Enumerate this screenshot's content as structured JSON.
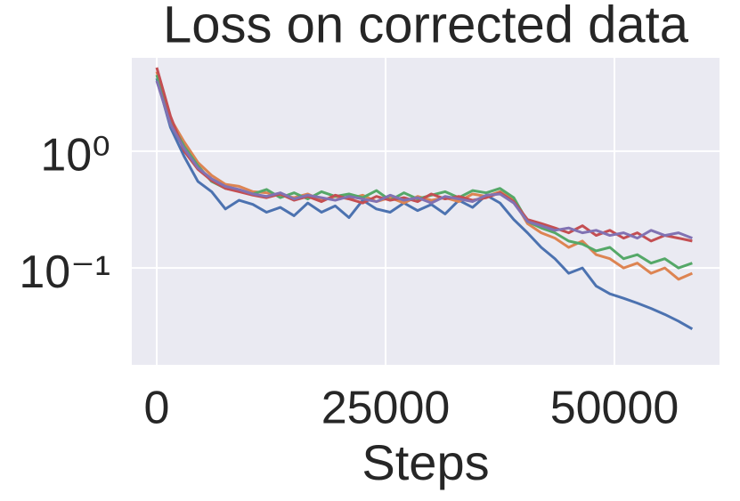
{
  "chart_data": {
    "type": "line",
    "title": "Loss on corrected data",
    "xlabel": "Steps",
    "yscale": "log",
    "grid": true,
    "xlim": [
      -2724,
      61478
    ],
    "xticks": [
      0,
      25000,
      50000
    ],
    "ylim": [
      0.0148,
      6.3
    ],
    "yticks": [
      {
        "value": 1,
        "label": "10⁰"
      },
      {
        "value": 0.1,
        "label": "10⁻¹"
      }
    ],
    "x": [
      0,
      1500,
      3000,
      4500,
      6000,
      7500,
      9000,
      10500,
      12000,
      13500,
      15000,
      16500,
      18000,
      19500,
      21000,
      22500,
      24000,
      25500,
      27000,
      28500,
      30000,
      31500,
      33000,
      34500,
      36000,
      37500,
      39000,
      40500,
      42000,
      43500,
      45000,
      46500,
      48000,
      49500,
      51000,
      52500,
      54000,
      55500,
      57000,
      58500
    ],
    "series": [
      {
        "color": "#4c72b0",
        "values": [
          4.2,
          1.6,
          0.9,
          0.55,
          0.45,
          0.32,
          0.38,
          0.35,
          0.3,
          0.33,
          0.28,
          0.36,
          0.3,
          0.34,
          0.27,
          0.38,
          0.32,
          0.3,
          0.36,
          0.31,
          0.35,
          0.29,
          0.38,
          0.33,
          0.42,
          0.36,
          0.26,
          0.2,
          0.15,
          0.12,
          0.09,
          0.1,
          0.07,
          0.06,
          0.055,
          0.05,
          0.045,
          0.04,
          0.035,
          0.03
        ]
      },
      {
        "color": "#dd8452",
        "values": [
          4.8,
          1.9,
          1.2,
          0.8,
          0.62,
          0.52,
          0.5,
          0.45,
          0.44,
          0.42,
          0.4,
          0.43,
          0.38,
          0.41,
          0.39,
          0.42,
          0.37,
          0.4,
          0.36,
          0.41,
          0.38,
          0.4,
          0.37,
          0.43,
          0.41,
          0.45,
          0.38,
          0.24,
          0.2,
          0.18,
          0.15,
          0.17,
          0.13,
          0.12,
          0.1,
          0.11,
          0.09,
          0.1,
          0.08,
          0.09
        ]
      },
      {
        "color": "#55a868",
        "values": [
          4.5,
          1.8,
          1.1,
          0.75,
          0.55,
          0.48,
          0.46,
          0.43,
          0.47,
          0.4,
          0.44,
          0.39,
          0.45,
          0.41,
          0.43,
          0.4,
          0.46,
          0.38,
          0.44,
          0.39,
          0.42,
          0.45,
          0.4,
          0.46,
          0.44,
          0.48,
          0.4,
          0.25,
          0.22,
          0.2,
          0.17,
          0.16,
          0.14,
          0.15,
          0.12,
          0.13,
          0.11,
          0.12,
          0.1,
          0.11
        ]
      },
      {
        "color": "#c44e52",
        "values": [
          5.2,
          2.0,
          1.0,
          0.7,
          0.56,
          0.48,
          0.45,
          0.42,
          0.4,
          0.43,
          0.38,
          0.41,
          0.37,
          0.42,
          0.39,
          0.36,
          0.41,
          0.38,
          0.4,
          0.37,
          0.43,
          0.39,
          0.41,
          0.38,
          0.4,
          0.44,
          0.37,
          0.26,
          0.24,
          0.22,
          0.2,
          0.23,
          0.19,
          0.21,
          0.18,
          0.2,
          0.17,
          0.19,
          0.18,
          0.17
        ]
      },
      {
        "color": "#8172b3",
        "values": [
          4.0,
          1.7,
          1.05,
          0.72,
          0.58,
          0.5,
          0.47,
          0.43,
          0.41,
          0.44,
          0.39,
          0.42,
          0.4,
          0.38,
          0.41,
          0.39,
          0.37,
          0.42,
          0.38,
          0.4,
          0.36,
          0.41,
          0.39,
          0.37,
          0.42,
          0.43,
          0.36,
          0.25,
          0.23,
          0.21,
          0.22,
          0.2,
          0.21,
          0.19,
          0.2,
          0.18,
          0.21,
          0.19,
          0.2,
          0.18
        ]
      }
    ]
  }
}
